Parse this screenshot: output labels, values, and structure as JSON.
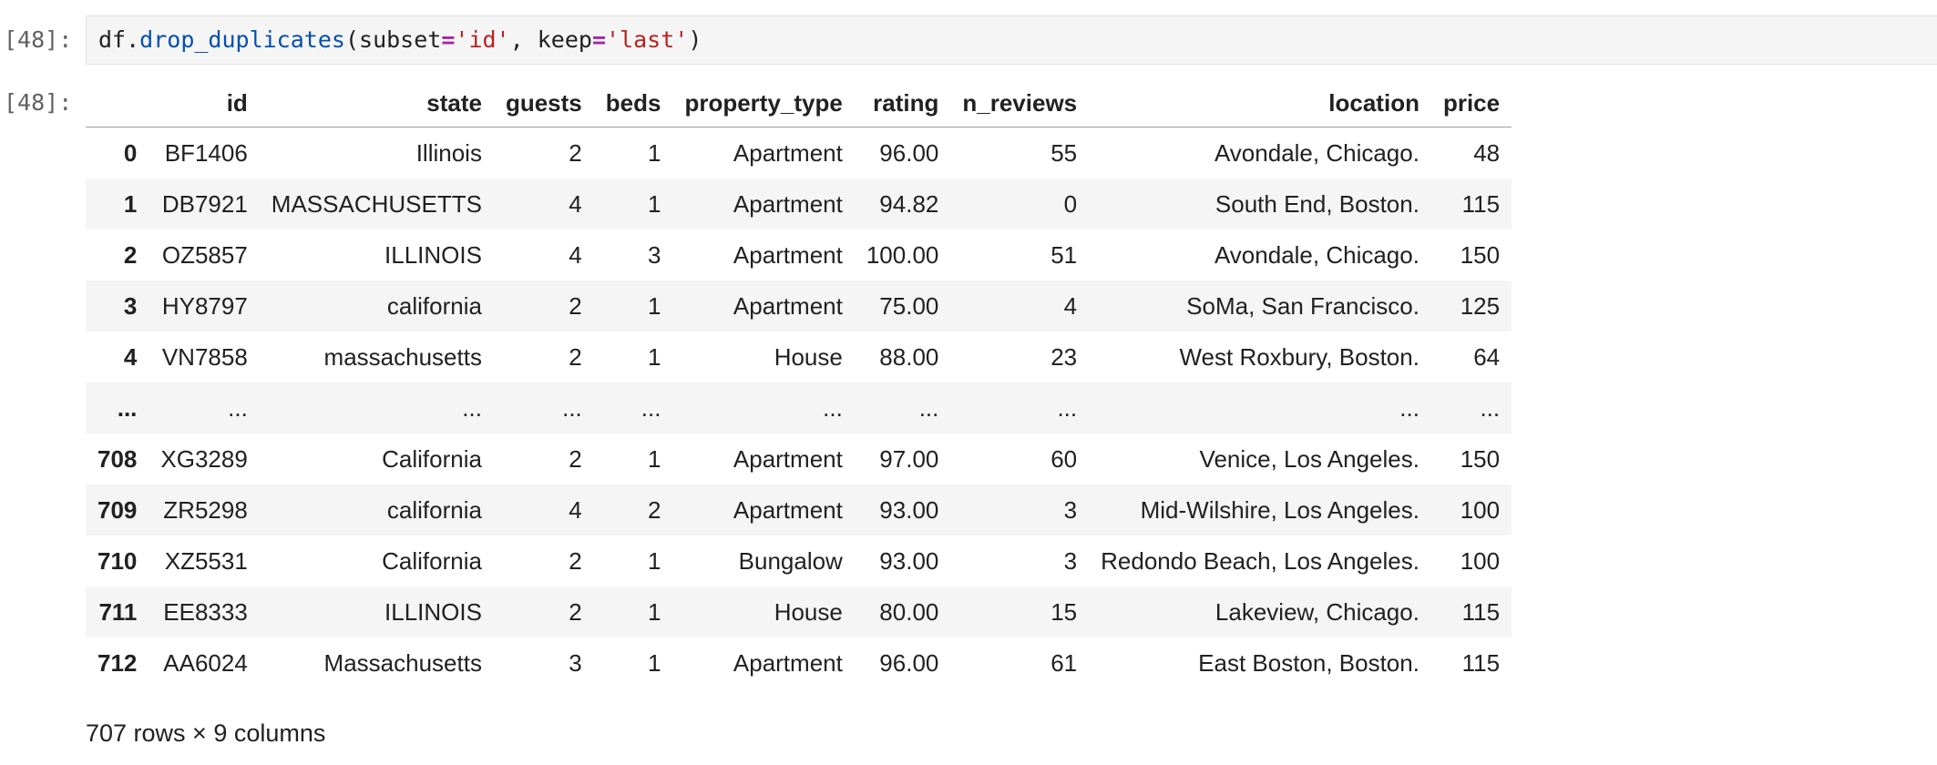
{
  "cell": {
    "in_prompt": "[48]:",
    "out_prompt": "[48]:",
    "code": {
      "obj": "df",
      "dot": ".",
      "method": "drop_duplicates",
      "open": "(",
      "arg1_name": "subset",
      "eq1": "=",
      "arg1_value": "'id'",
      "sep": ", ",
      "arg2_name": "keep",
      "eq2": "=",
      "arg2_value": "'last'",
      "close": ")"
    }
  },
  "table": {
    "index_header": "",
    "columns": [
      "id",
      "state",
      "guests",
      "beds",
      "property_type",
      "rating",
      "n_reviews",
      "location",
      "price"
    ],
    "rows": [
      {
        "index": "0",
        "cells": [
          "BF1406",
          "Illinois",
          "2",
          "1",
          "Apartment",
          "96.00",
          "55",
          "Avondale, Chicago.",
          "48"
        ]
      },
      {
        "index": "1",
        "cells": [
          "DB7921",
          "MASSACHUSETTS",
          "4",
          "1",
          "Apartment",
          "94.82",
          "0",
          "South End, Boston.",
          "115"
        ]
      },
      {
        "index": "2",
        "cells": [
          "OZ5857",
          "ILLINOIS",
          "4",
          "3",
          "Apartment",
          "100.00",
          "51",
          "Avondale, Chicago.",
          "150"
        ]
      },
      {
        "index": "3",
        "cells": [
          "HY8797",
          "california",
          "2",
          "1",
          "Apartment",
          "75.00",
          "4",
          "SoMa, San Francisco.",
          "125"
        ]
      },
      {
        "index": "4",
        "cells": [
          "VN7858",
          "massachusetts",
          "2",
          "1",
          "House",
          "88.00",
          "23",
          "West Roxbury, Boston.",
          "64"
        ]
      },
      {
        "index": "...",
        "cells": [
          "...",
          "...",
          "...",
          "...",
          "...",
          "...",
          "...",
          "...",
          "..."
        ]
      },
      {
        "index": "708",
        "cells": [
          "XG3289",
          "California",
          "2",
          "1",
          "Apartment",
          "97.00",
          "60",
          "Venice, Los Angeles.",
          "150"
        ]
      },
      {
        "index": "709",
        "cells": [
          "ZR5298",
          "california",
          "4",
          "2",
          "Apartment",
          "93.00",
          "3",
          "Mid-Wilshire, Los Angeles.",
          "100"
        ]
      },
      {
        "index": "710",
        "cells": [
          "XZ5531",
          "California",
          "2",
          "1",
          "Bungalow",
          "93.00",
          "3",
          "Redondo Beach, Los Angeles.",
          "100"
        ]
      },
      {
        "index": "711",
        "cells": [
          "EE8333",
          "ILLINOIS",
          "2",
          "1",
          "House",
          "80.00",
          "15",
          "Lakeview, Chicago.",
          "115"
        ]
      },
      {
        "index": "712",
        "cells": [
          "AA6024",
          "Massachusetts",
          "3",
          "1",
          "Apartment",
          "96.00",
          "61",
          "East Boston, Boston.",
          "115"
        ]
      }
    ]
  },
  "summary": "707 rows × 9 columns",
  "colors": {
    "code_background": "#f5f5f5",
    "method": "#0550ae",
    "operator": "#a626a4",
    "string": "#ba2121",
    "prompt": "#616161",
    "stripe": "#f5f5f5"
  }
}
